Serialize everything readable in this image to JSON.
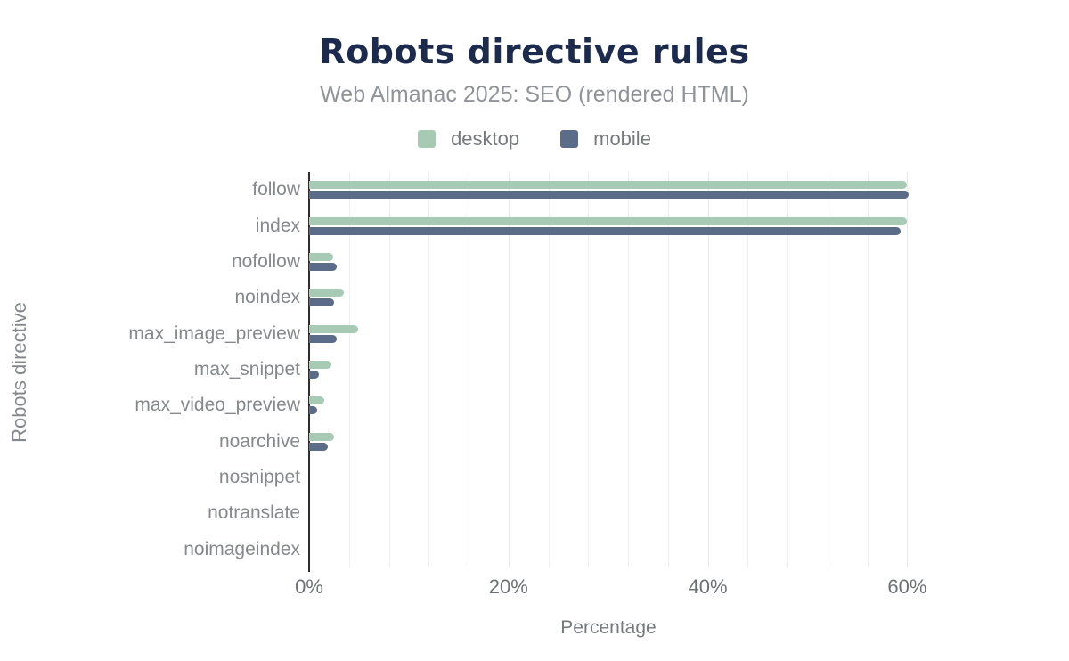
{
  "header": {
    "title": "Robots directive rules",
    "subtitle": "Web Almanac 2025: SEO (rendered HTML)"
  },
  "chart_data": {
    "type": "bar",
    "orientation": "horizontal",
    "title": "Robots directive rules",
    "subtitle": "Web Almanac 2025: SEO (rendered HTML)",
    "xlabel": "Percentage",
    "ylabel": "Robots directive",
    "xlim": [
      0,
      60
    ],
    "x_ticks": [
      "0%",
      "20%",
      "40%",
      "60%"
    ],
    "x_tick_values": [
      0,
      20,
      40,
      60
    ],
    "grid_step_percent": 4,
    "grid": "vertical-minor",
    "legend_position": "top",
    "categories": [
      "follow",
      "index",
      "nofollow",
      "noindex",
      "max_image_preview",
      "max_snippet",
      "max_video_preview",
      "noarchive",
      "nosnippet",
      "notranslate",
      "noimageindex"
    ],
    "series": [
      {
        "name": "desktop",
        "color": "#a7cab5",
        "values": [
          60.0,
          60.0,
          2.4,
          3.5,
          4.9,
          2.2,
          1.5,
          2.5,
          0.0,
          0.0,
          0.0
        ]
      },
      {
        "name": "mobile",
        "color": "#5b6c88",
        "values": [
          60.1,
          59.3,
          2.8,
          2.5,
          2.8,
          1.0,
          0.8,
          1.9,
          0.0,
          0.0,
          0.0
        ]
      }
    ]
  },
  "colors": {
    "title_text": "#1c2b4d",
    "subtitle_text": "#909398",
    "legend_text": "#75797e",
    "category_text": "#85888c",
    "tick_text": "#6e7277",
    "gridline": "#eeeef0",
    "axis_line": "#2d2d2d",
    "desktop": "#a7cab5",
    "mobile": "#5b6c88",
    "background": "#ffffff"
  }
}
